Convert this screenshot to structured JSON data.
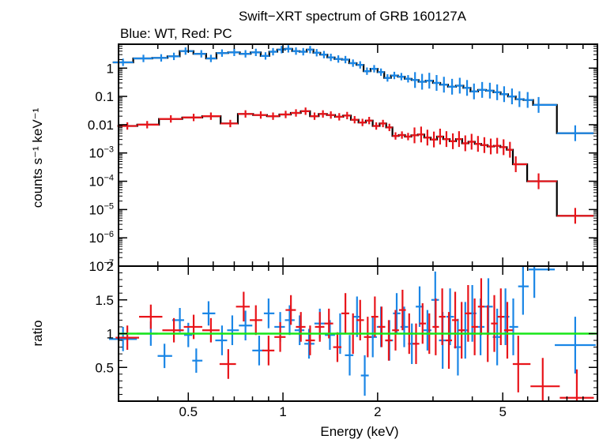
{
  "title": "Swift−XRT spectrum of GRB 160127A",
  "subtitle": "Blue: WT, Red: PC",
  "colors": {
    "wt": "#1a86e6",
    "pc": "#e8141a",
    "model": "#000000",
    "unity": "#19e619"
  },
  "chart_data": [
    {
      "type": "scatter",
      "panel": "spectrum",
      "xlabel": "Energy (keV)",
      "ylabel": "counts s⁻¹ keV⁻¹",
      "xscale": "log",
      "yscale": "log",
      "xlim": [
        0.3,
        10
      ],
      "ylim": [
        1e-07,
        7
      ],
      "yticks": [
        {
          "v": 1,
          "label": "1"
        },
        {
          "v": 0.1,
          "label": "0.1"
        },
        {
          "v": 0.01,
          "label": "0.01"
        },
        {
          "v": 0.001,
          "base": "10",
          "exp": "−3"
        },
        {
          "v": 0.0001,
          "base": "10",
          "exp": "−4"
        },
        {
          "v": 1e-05,
          "base": "10",
          "exp": "−5"
        },
        {
          "v": 1e-06,
          "base": "10",
          "exp": "−6"
        },
        {
          "v": 1e-07,
          "base": "10",
          "exp": "−7"
        }
      ],
      "series": [
        {
          "key": "wt",
          "points": [
            [
              0.31,
              1.6
            ],
            [
              0.36,
              2.2
            ],
            [
              0.41,
              2.3
            ],
            [
              0.45,
              2.6
            ],
            [
              0.49,
              4.0
            ],
            [
              0.55,
              3.2
            ],
            [
              0.59,
              2.2
            ],
            [
              0.64,
              3.4
            ],
            [
              0.7,
              3.6
            ],
            [
              0.76,
              3.2
            ],
            [
              0.82,
              3.6
            ],
            [
              0.88,
              2.7
            ],
            [
              0.93,
              3.8
            ],
            [
              0.99,
              4.5
            ],
            [
              1.04,
              4.8
            ],
            [
              1.1,
              4.0
            ],
            [
              1.16,
              3.8
            ],
            [
              1.22,
              4.5
            ],
            [
              1.28,
              3.5
            ],
            [
              1.35,
              3.0
            ],
            [
              1.42,
              2.4
            ],
            [
              1.5,
              2.1
            ],
            [
              1.58,
              2.0
            ],
            [
              1.67,
              1.5
            ],
            [
              1.76,
              1.3
            ],
            [
              1.85,
              0.78
            ],
            [
              1.95,
              0.95
            ],
            [
              2.05,
              0.72
            ],
            [
              2.15,
              0.45
            ],
            [
              2.26,
              0.55
            ],
            [
              2.38,
              0.5
            ],
            [
              2.5,
              0.42
            ],
            [
              2.63,
              0.38
            ],
            [
              2.77,
              0.33
            ],
            [
              2.92,
              0.36
            ],
            [
              3.08,
              0.3
            ],
            [
              3.25,
              0.26
            ],
            [
              3.45,
              0.22
            ],
            [
              3.65,
              0.24
            ],
            [
              3.85,
              0.2
            ],
            [
              4.05,
              0.15
            ],
            [
              4.3,
              0.17
            ],
            [
              4.55,
              0.16
            ],
            [
              4.8,
              0.14
            ],
            [
              5.05,
              0.12
            ],
            [
              5.35,
              0.1
            ],
            [
              5.65,
              0.08
            ],
            [
              6.0,
              0.075
            ],
            [
              6.5,
              0.05
            ],
            [
              8.5,
              0.005
            ]
          ]
        },
        {
          "key": "pc",
          "points": [
            [
              0.32,
              0.009
            ],
            [
              0.37,
              0.01
            ],
            [
              0.44,
              0.016
            ],
            [
              0.52,
              0.018
            ],
            [
              0.59,
              0.02
            ],
            [
              0.68,
              0.011
            ],
            [
              0.76,
              0.024
            ],
            [
              0.85,
              0.022
            ],
            [
              0.93,
              0.02
            ],
            [
              1.02,
              0.023
            ],
            [
              1.1,
              0.026
            ],
            [
              1.18,
              0.03
            ],
            [
              1.26,
              0.02
            ],
            [
              1.34,
              0.024
            ],
            [
              1.42,
              0.022
            ],
            [
              1.51,
              0.019
            ],
            [
              1.6,
              0.021
            ],
            [
              1.69,
              0.015
            ],
            [
              1.79,
              0.012
            ],
            [
              1.88,
              0.014
            ],
            [
              1.98,
              0.009
            ],
            [
              2.08,
              0.011
            ],
            [
              2.18,
              0.008
            ],
            [
              2.28,
              0.004
            ],
            [
              2.39,
              0.0043
            ],
            [
              2.5,
              0.0038
            ],
            [
              2.62,
              0.0042
            ],
            [
              2.75,
              0.0045
            ],
            [
              2.88,
              0.0035
            ],
            [
              3.02,
              0.003
            ],
            [
              3.16,
              0.0038
            ],
            [
              3.31,
              0.0031
            ],
            [
              3.47,
              0.0026
            ],
            [
              3.63,
              0.0031
            ],
            [
              3.8,
              0.0022
            ],
            [
              3.98,
              0.0025
            ],
            [
              4.17,
              0.0021
            ],
            [
              4.37,
              0.0019
            ],
            [
              4.58,
              0.0017
            ],
            [
              4.8,
              0.0018
            ],
            [
              5.03,
              0.0016
            ],
            [
              5.27,
              0.0013
            ],
            [
              5.5,
              0.0004
            ],
            [
              6.5,
              0.0001
            ],
            [
              8.5,
              6e-06
            ]
          ]
        }
      ]
    },
    {
      "type": "scatter",
      "panel": "ratio",
      "xlabel": "Energy (keV)",
      "ylabel": "ratio",
      "xscale": "log",
      "xlim": [
        0.3,
        10
      ],
      "ylim": [
        0,
        2
      ],
      "yticks": [
        {
          "v": 0.5,
          "label": "0.5"
        },
        {
          "v": 1,
          "label": "1"
        },
        {
          "v": 1.5,
          "label": "1.5"
        },
        {
          "v": 2,
          "label": "2"
        }
      ],
      "xticks": [
        {
          "v": 0.5,
          "label": "0.5"
        },
        {
          "v": 1,
          "label": "1"
        },
        {
          "v": 2,
          "label": "2"
        },
        {
          "v": 5,
          "label": "5"
        }
      ],
      "series": [
        {
          "key": "wt",
          "points": [
            [
              0.31,
              0.92
            ],
            [
              0.38,
              1.0
            ],
            [
              0.42,
              0.67
            ],
            [
              0.47,
              1.2
            ],
            [
              0.5,
              0.98
            ],
            [
              0.53,
              0.6
            ],
            [
              0.58,
              1.3
            ],
            [
              0.64,
              0.9
            ],
            [
              0.69,
              1.05
            ],
            [
              0.76,
              1.12
            ],
            [
              0.84,
              0.75
            ],
            [
              0.9,
              1.3
            ],
            [
              0.98,
              1.1
            ],
            [
              1.05,
              1.2
            ],
            [
              1.13,
              1.05
            ],
            [
              1.21,
              0.85
            ],
            [
              1.31,
              1.15
            ],
            [
              1.41,
              0.98
            ],
            [
              1.52,
              1.0
            ],
            [
              1.63,
              0.68
            ],
            [
              1.72,
              1.25
            ],
            [
              1.82,
              0.38
            ],
            [
              1.93,
              0.95
            ],
            [
              2.05,
              1.1
            ],
            [
              2.18,
              0.9
            ],
            [
              2.3,
              1.3
            ],
            [
              2.43,
              1.1
            ],
            [
              2.57,
              0.85
            ],
            [
              2.72,
              1.4
            ],
            [
              2.88,
              1.05
            ],
            [
              3.05,
              1.5
            ],
            [
              3.22,
              0.9
            ],
            [
              3.4,
              1.25
            ],
            [
              3.6,
              0.8
            ],
            [
              3.8,
              1.05
            ],
            [
              4.0,
              1.3
            ],
            [
              4.25,
              1.1
            ],
            [
              4.5,
              1.4
            ],
            [
              4.8,
              0.95
            ],
            [
              5.1,
              1.25
            ],
            [
              5.4,
              1.1
            ],
            [
              5.8,
              1.7
            ],
            [
              6.3,
              1.95
            ],
            [
              8.5,
              0.83
            ]
          ]
        },
        {
          "key": "pc",
          "points": [
            [
              0.32,
              0.94
            ],
            [
              0.38,
              1.25
            ],
            [
              0.45,
              1.05
            ],
            [
              0.52,
              1.1
            ],
            [
              0.59,
              1.05
            ],
            [
              0.67,
              0.55
            ],
            [
              0.75,
              1.4
            ],
            [
              0.82,
              1.2
            ],
            [
              0.9,
              0.75
            ],
            [
              0.98,
              0.95
            ],
            [
              1.06,
              1.35
            ],
            [
              1.14,
              1.1
            ],
            [
              1.22,
              0.9
            ],
            [
              1.31,
              1.1
            ],
            [
              1.4,
              1.15
            ],
            [
              1.49,
              0.8
            ],
            [
              1.58,
              1.3
            ],
            [
              1.67,
              1.0
            ],
            [
              1.76,
              1.2
            ],
            [
              1.86,
              0.95
            ],
            [
              1.96,
              1.25
            ],
            [
              2.06,
              1.1
            ],
            [
              2.17,
              0.9
            ],
            [
              2.28,
              1.05
            ],
            [
              2.4,
              1.35
            ],
            [
              2.52,
              1.0
            ],
            [
              2.65,
              0.85
            ],
            [
              2.78,
              1.15
            ],
            [
              2.92,
              1.0
            ],
            [
              3.06,
              1.1
            ],
            [
              3.21,
              1.25
            ],
            [
              3.37,
              0.9
            ],
            [
              3.53,
              1.2
            ],
            [
              3.7,
              1.05
            ],
            [
              3.88,
              1.3
            ],
            [
              4.07,
              1.1
            ],
            [
              4.27,
              1.4
            ],
            [
              4.48,
              1.0
            ],
            [
              4.7,
              1.15
            ],
            [
              4.93,
              1.25
            ],
            [
              5.17,
              1.05
            ],
            [
              5.6,
              0.55
            ],
            [
              6.7,
              0.22
            ],
            [
              8.6,
              0.05
            ]
          ]
        }
      ]
    }
  ]
}
